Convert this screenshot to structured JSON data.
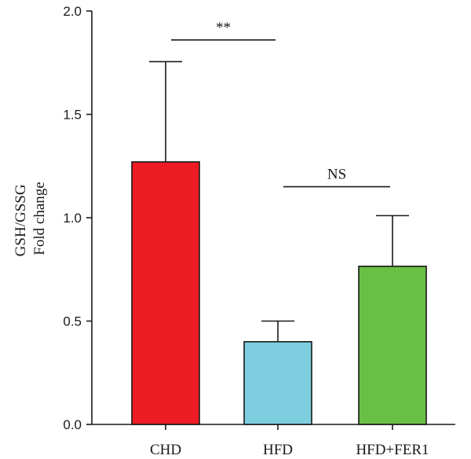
{
  "chart_data": {
    "type": "bar",
    "title": "",
    "xlabel": "",
    "ylabel_lines": [
      "GSH/GSSG",
      "Fold change"
    ],
    "ylim": [
      0,
      2.0
    ],
    "yticks": [
      0.0,
      0.5,
      1.0,
      1.5,
      2.0
    ],
    "ytick_labels": [
      "0.0",
      "0.5",
      "1.0",
      "1.5",
      "2.0"
    ],
    "categories": [
      "CHD",
      "HFD",
      "HFD+FER1"
    ],
    "values": [
      1.27,
      0.4,
      0.765
    ],
    "errors_upper": [
      1.755,
      0.5,
      1.01
    ],
    "colors": [
      "#ed1c24",
      "#7dcfe0",
      "#6abf45"
    ],
    "grid": false,
    "significance": [
      {
        "from": 0,
        "to": 1,
        "label": "**",
        "y": 1.86
      },
      {
        "from": 1,
        "to": 2,
        "label": "NS",
        "y": 1.15
      }
    ]
  }
}
